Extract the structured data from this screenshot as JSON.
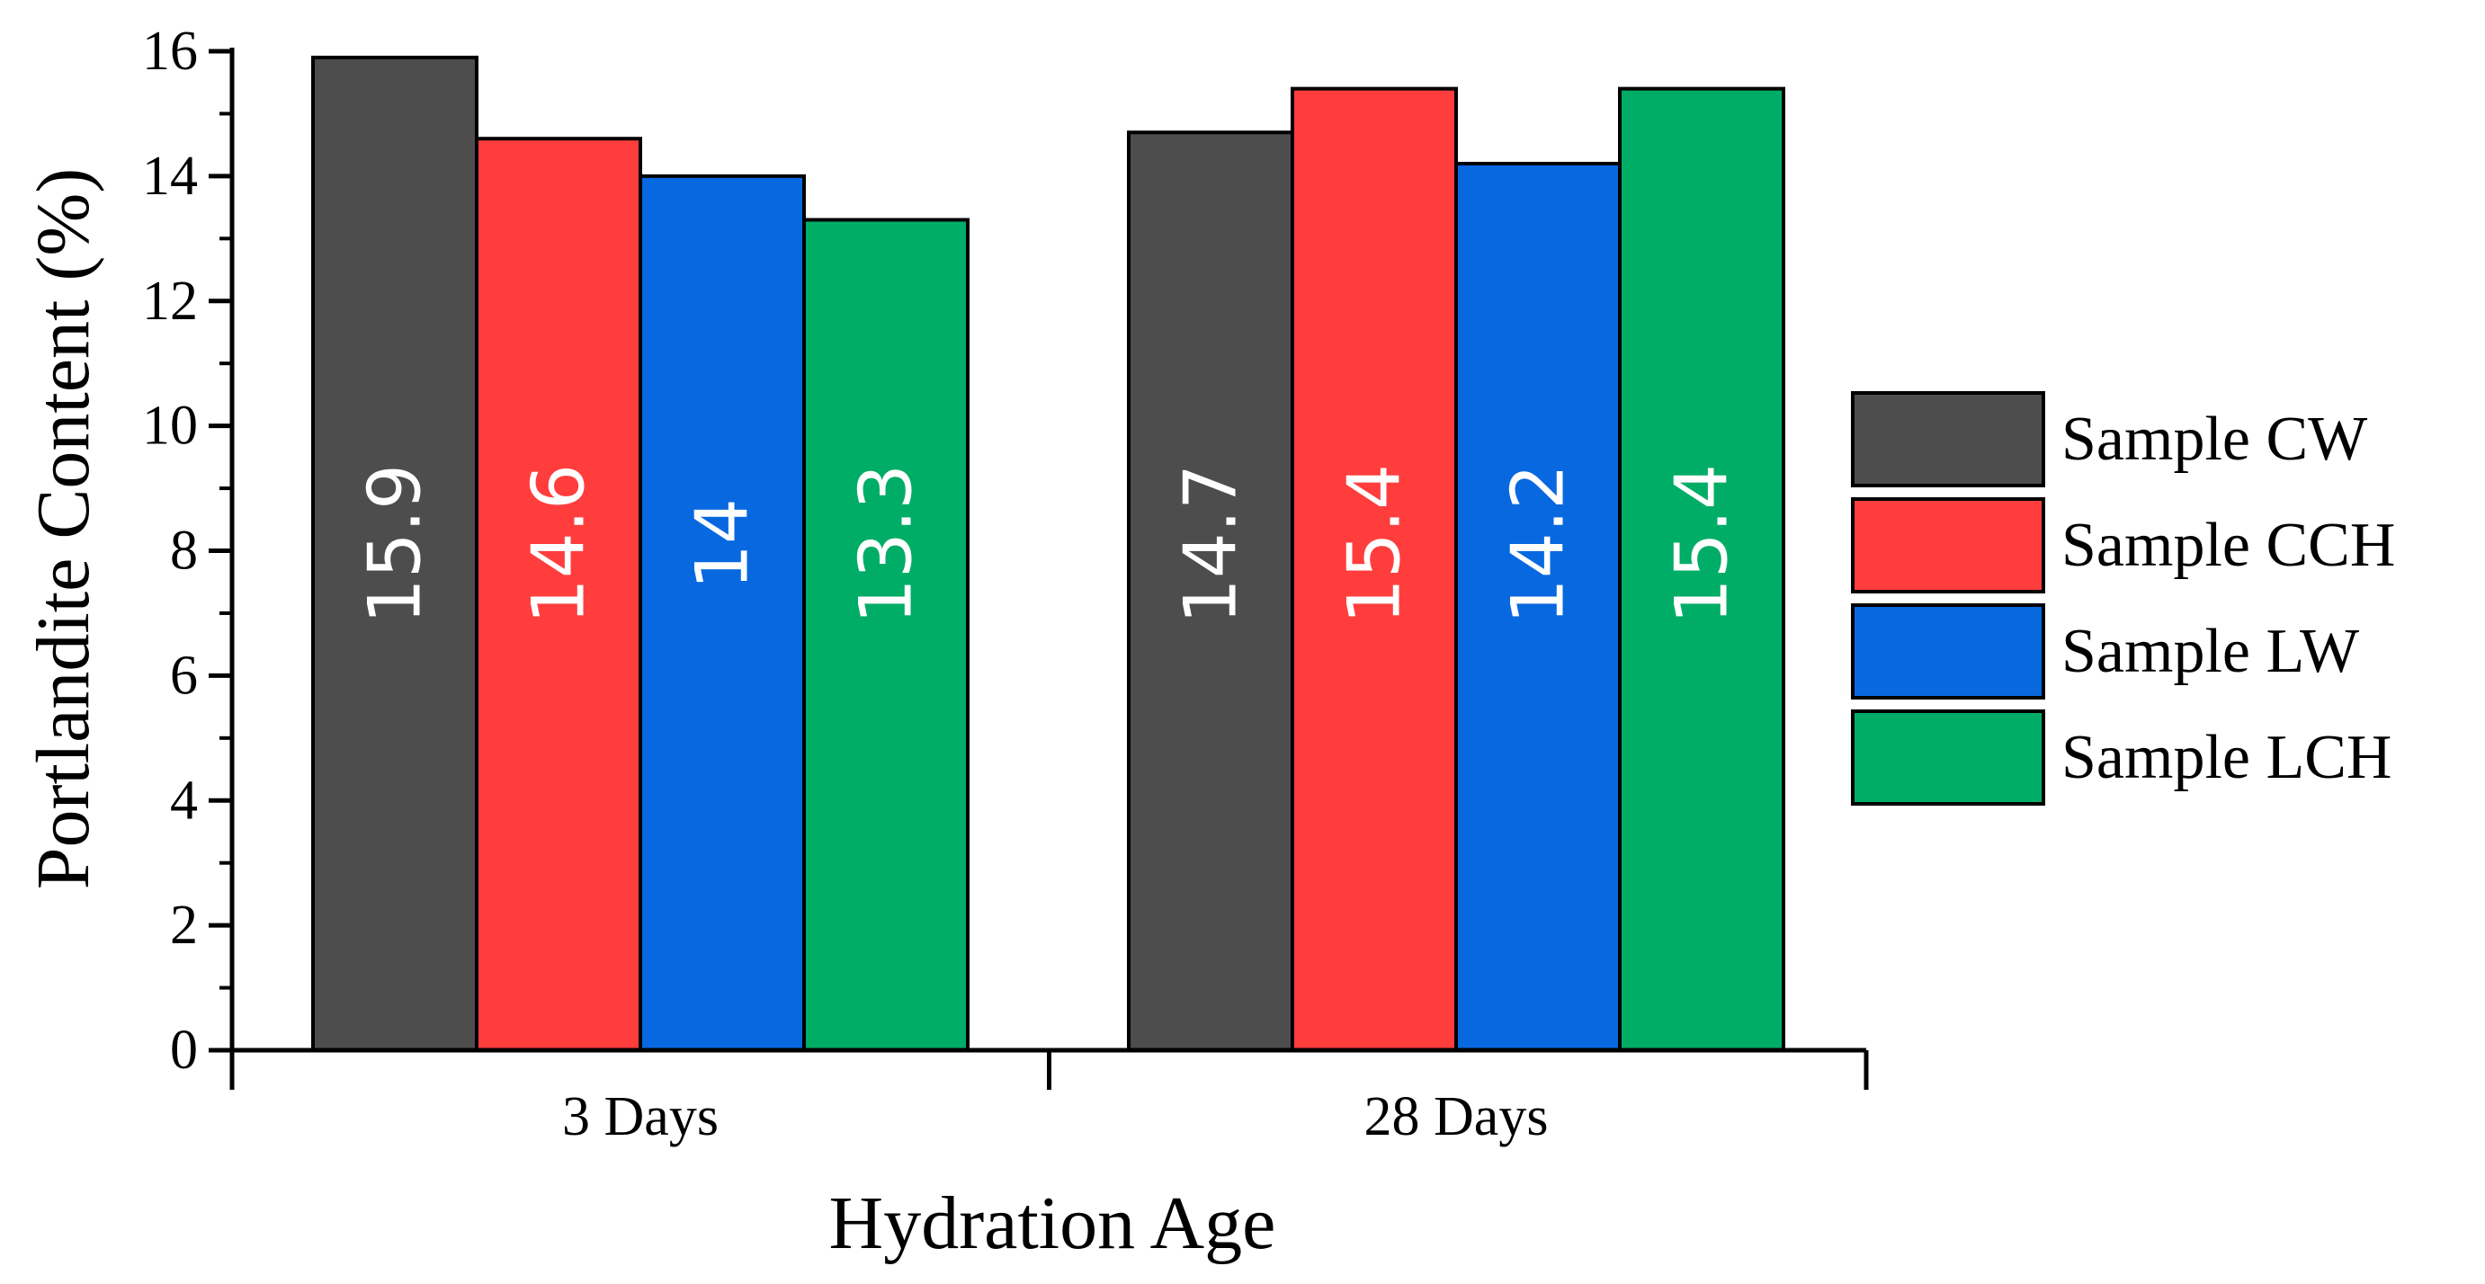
{
  "chart_data": {
    "type": "bar",
    "title": "",
    "xlabel": "Hydration Age",
    "ylabel": "Portlandite Content (%)",
    "ylim": [
      0,
      16
    ],
    "yticks": [
      "0",
      "2",
      "4",
      "6",
      "8",
      "10",
      "12",
      "14",
      "16"
    ],
    "categories": [
      "3 Days",
      "28 Days"
    ],
    "series": [
      {
        "name": "Sample CW",
        "color": "#4d4d4d",
        "values": [
          15.9,
          14.7
        ],
        "labels": [
          "15.9",
          "14.7"
        ],
        "label_color": "#ffffff"
      },
      {
        "name": "Sample CCH",
        "color": "#ff3d3d",
        "values": [
          14.6,
          15.4
        ],
        "labels": [
          "14.6",
          "15.4"
        ],
        "label_color": "#ffffff"
      },
      {
        "name": "Sample LW",
        "color": "#0868e0",
        "values": [
          14.0,
          14.2
        ],
        "labels": [
          "14",
          "14.2"
        ],
        "label_color": "#ffffff"
      },
      {
        "name": "Sample LCH",
        "color": "#00ad66",
        "values": [
          13.3,
          15.4
        ],
        "labels": [
          "13.3",
          "15.4"
        ],
        "label_color": "#ffffff"
      }
    ],
    "legend_position": "right"
  }
}
